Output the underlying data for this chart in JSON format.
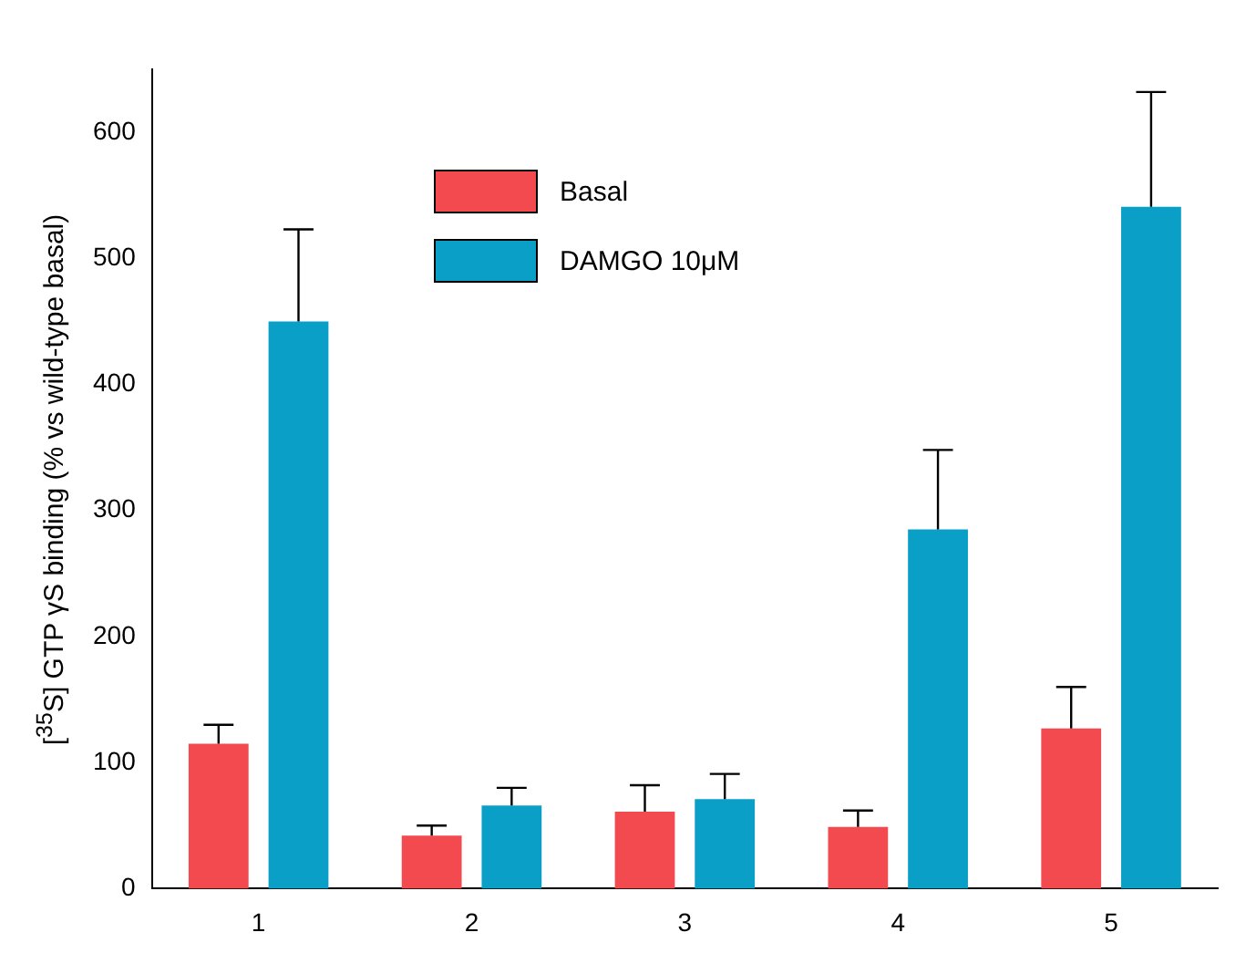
{
  "chart_data": {
    "type": "bar",
    "ylabel": "[$^{35}$S] GTP γS binding (% vs wild-type basal)",
    "categories": [
      "1",
      "2",
      "3",
      "4",
      "5"
    ],
    "series": [
      {
        "name": "Basal",
        "color": "#f24a4f",
        "values": [
          115,
          42,
          61,
          49,
          127
        ],
        "errors": [
          [
            115,
            130
          ],
          [
            42,
            50
          ],
          [
            61,
            82
          ],
          [
            49,
            62
          ],
          [
            127,
            160
          ]
        ]
      },
      {
        "name": "DAMGO 10μM",
        "color": "#0a9fc7",
        "values": [
          450,
          66,
          71,
          285,
          541
        ],
        "errors": [
          [
            450,
            523
          ],
          [
            66,
            80
          ],
          [
            71,
            91
          ],
          [
            285,
            348
          ],
          [
            541,
            632
          ]
        ]
      }
    ],
    "ylim": [
      0,
      650
    ],
    "yticks": [
      0,
      100,
      200,
      300,
      400,
      500,
      600
    ],
    "grid": false,
    "legend": "top left"
  }
}
